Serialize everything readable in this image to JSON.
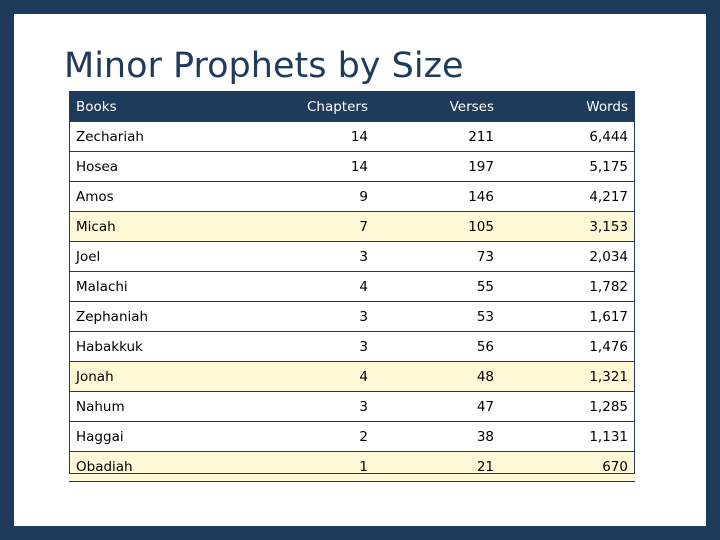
{
  "title": "Minor Prophets by Size",
  "columns": [
    "Books",
    "Chapters",
    "Verses",
    "Words"
  ],
  "rows": [
    {
      "book": "Zechariah",
      "chapters": "14",
      "verses": "211",
      "words": "6,444",
      "highlight": false
    },
    {
      "book": "Hosea",
      "chapters": "14",
      "verses": "197",
      "words": "5,175",
      "highlight": false
    },
    {
      "book": "Amos",
      "chapters": "9",
      "verses": "146",
      "words": "4,217",
      "highlight": false
    },
    {
      "book": "Micah",
      "chapters": "7",
      "verses": "105",
      "words": "3,153",
      "highlight": true
    },
    {
      "book": "Joel",
      "chapters": "3",
      "verses": "73",
      "words": "2,034",
      "highlight": false
    },
    {
      "book": "Malachi",
      "chapters": "4",
      "verses": "55",
      "words": "1,782",
      "highlight": false
    },
    {
      "book": "Zephaniah",
      "chapters": "3",
      "verses": "53",
      "words": "1,617",
      "highlight": false
    },
    {
      "book": "Habakkuk",
      "chapters": "3",
      "verses": "56",
      "words": "1,476",
      "highlight": false
    },
    {
      "book": "Jonah",
      "chapters": "4",
      "verses": "48",
      "words": "1,321",
      "highlight": true
    },
    {
      "book": "Nahum",
      "chapters": "3",
      "verses": "47",
      "words": "1,285",
      "highlight": false
    },
    {
      "book": "Haggai",
      "chapters": "2",
      "verses": "38",
      "words": "1,131",
      "highlight": false
    },
    {
      "book": "Obadiah",
      "chapters": "1",
      "verses": "21",
      "words": "670",
      "highlight": true
    }
  ]
}
